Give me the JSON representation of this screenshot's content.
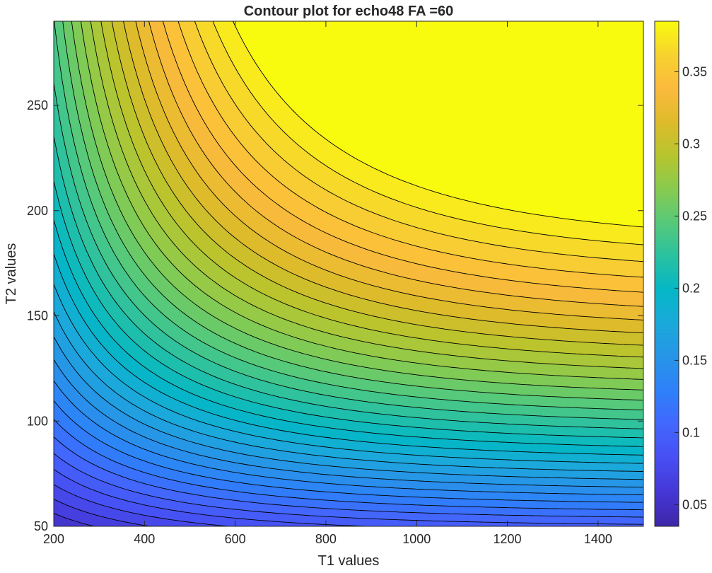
{
  "chart_data": {
    "type": "contour",
    "title": "Contour plot for echo48 FA =60",
    "xlabel": "T1 values",
    "ylabel": "T2 values",
    "xlim": [
      200,
      1500
    ],
    "ylim": [
      50,
      290
    ],
    "xticks": [
      200,
      400,
      600,
      800,
      1000,
      1200,
      1400
    ],
    "yticks": [
      50,
      100,
      150,
      200,
      250
    ],
    "colorbar": {
      "colormap": "parula",
      "range": [
        0.035,
        0.385
      ],
      "ticks": [
        0.05,
        0.1,
        0.15,
        0.2,
        0.25,
        0.3,
        0.35
      ]
    },
    "contour_levels": {
      "start": 0.04,
      "step": 0.01,
      "count": 35,
      "line_color": "#000000"
    },
    "sample_values": [
      {
        "T1": 200,
        "T2": 50,
        "value": 0.04
      },
      {
        "T1": 200,
        "T2": 150,
        "value": 0.19
      },
      {
        "T1": 200,
        "T2": 290,
        "value": 0.24
      },
      {
        "T1": 800,
        "T2": 100,
        "value": 0.13
      },
      {
        "T1": 800,
        "T2": 200,
        "value": 0.29
      },
      {
        "T1": 800,
        "T2": 290,
        "value": 0.345
      },
      {
        "T1": 1500,
        "T2": 50,
        "value": 0.05
      },
      {
        "T1": 1500,
        "T2": 150,
        "value": 0.25
      },
      {
        "T1": 1500,
        "T2": 200,
        "value": 0.33
      },
      {
        "T1": 1500,
        "T2": 290,
        "value": 0.385
      }
    ]
  }
}
